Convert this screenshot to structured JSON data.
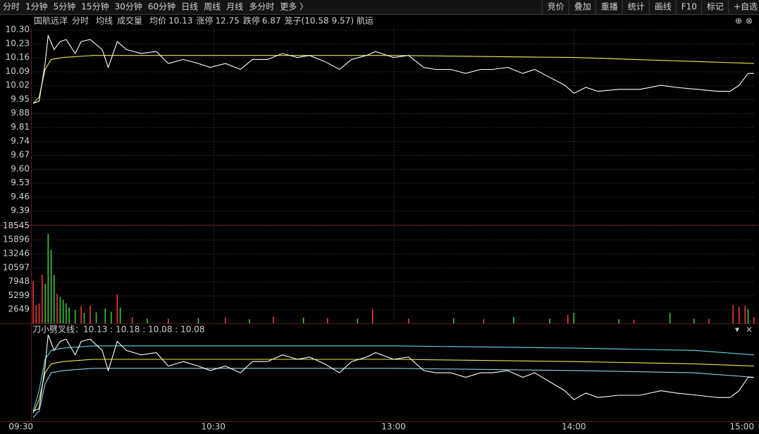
{
  "toolbar": {
    "left": [
      "分时",
      "1分钟",
      "5分钟",
      "15分钟",
      "30分钟",
      "60分钟",
      "日线",
      "周线",
      "月线",
      "多分时",
      "更多 〉"
    ],
    "active": 0,
    "right": [
      "竞价",
      "叠加",
      "重播",
      "统计",
      "画线",
      "F10",
      "标记",
      "+自选"
    ]
  },
  "header": {
    "name": "国航远洋",
    "items": [
      "分时",
      "均线",
      "成交量"
    ],
    "avg_label": "均价",
    "avg": 10.13,
    "limit_up_label": "涨停",
    "limit_up": 12.75,
    "limit_down_label": "跌停",
    "limit_down": 6.87,
    "cage_open": "笼子(",
    "cage_high": 10.58,
    "cage_low": 9.57,
    "cage_close": ")",
    "sector": "航运"
  },
  "xlim": [
    0,
    240
  ],
  "xticks": [
    {
      "value": 0,
      "label": "09:30"
    },
    {
      "value": 60,
      "label": "10:30"
    },
    {
      "value": 120,
      "label": "13:00"
    },
    {
      "value": 180,
      "label": "14:00"
    },
    {
      "value": 240,
      "label": "15:00"
    }
  ],
  "price_chart": {
    "ylim": [
      9.32,
      10.3
    ],
    "yticks": [
      {
        "value": 10.3,
        "label": "10.30"
      },
      10.23,
      10.16,
      10.09,
      10.02,
      9.95,
      9.88,
      9.81,
      9.74,
      9.67,
      {
        "value": 9.6,
        "label": "9.60"
      },
      9.53,
      9.46,
      9.39
    ],
    "price": {
      "color": "#ffffff",
      "x": [
        0,
        2,
        4,
        5,
        7,
        9,
        11,
        14,
        16,
        19,
        23,
        25,
        28,
        31,
        36,
        41,
        45,
        50,
        55,
        59,
        64,
        69,
        73,
        78,
        83,
        88,
        92,
        97,
        102,
        106,
        111,
        114,
        120,
        125,
        130,
        134,
        139,
        144,
        149,
        153,
        158,
        163,
        167,
        172,
        177,
        180,
        184,
        188,
        195,
        202,
        209,
        214,
        221,
        228,
        232,
        235,
        238,
        240
      ],
      "values": [
        9.93,
        9.94,
        10.13,
        10.27,
        10.2,
        10.24,
        10.25,
        10.18,
        10.24,
        10.25,
        10.2,
        10.11,
        10.24,
        10.2,
        10.18,
        10.19,
        10.13,
        10.15,
        10.13,
        10.11,
        10.13,
        10.1,
        10.15,
        10.15,
        10.18,
        10.16,
        10.17,
        10.14,
        10.1,
        10.15,
        10.17,
        10.19,
        10.16,
        10.17,
        10.11,
        10.1,
        10.1,
        10.08,
        10.1,
        10.1,
        10.11,
        10.08,
        10.1,
        10.06,
        10.02,
        9.98,
        10.01,
        9.99,
        10.0,
        10.0,
        10.02,
        10.01,
        10.0,
        9.99,
        9.99,
        10.02,
        10.08,
        10.08
      ]
    },
    "average": {
      "color": "#e8e85a",
      "x": [
        0,
        2,
        4,
        6,
        10,
        20,
        60,
        120,
        180,
        220,
        240
      ],
      "values": [
        9.93,
        9.96,
        10.1,
        10.15,
        10.16,
        10.17,
        10.17,
        10.17,
        10.16,
        10.14,
        10.13
      ]
    }
  },
  "volume_chart": {
    "ylim": [
      0,
      18860
    ],
    "tick_color": "#e0c848",
    "yticks": [
      18545,
      15896,
      13246,
      10597,
      7948,
      5299,
      2649
    ],
    "up": {
      "color": "#ff3b3b",
      "x": [
        0,
        1,
        2,
        3,
        8,
        16,
        19,
        28,
        33,
        45,
        64,
        80,
        98,
        113,
        125,
        150,
        178,
        200,
        225,
        233,
        235,
        237,
        240
      ],
      "values": [
        8000,
        3500,
        3800,
        9200,
        5600,
        3300,
        3400,
        5500,
        1200,
        900,
        1100,
        1300,
        1000,
        2700,
        900,
        800,
        1600,
        700,
        900,
        3500,
        3200,
        3400,
        1200
      ]
    },
    "down": {
      "color": "#3bd13b",
      "x": [
        4,
        5,
        6,
        7,
        9,
        10,
        11,
        12,
        14,
        17,
        21,
        24,
        26,
        29,
        38,
        55,
        72,
        90,
        108,
        140,
        160,
        172,
        180,
        195,
        212,
        220,
        238
      ],
      "values": [
        7500,
        17000,
        14000,
        9200,
        5000,
        4500,
        3800,
        3000,
        2600,
        2000,
        2100,
        2800,
        2200,
        3000,
        900,
        1000,
        800,
        1100,
        900,
        1000,
        1200,
        900,
        2000,
        800,
        2000,
        900,
        2700
      ]
    }
  },
  "indicator": {
    "name": "刀小劈叉线",
    "separator": " : ",
    "first_separator": "：",
    "ylim": [
      9.89,
      10.27
    ],
    "series": [
      {
        "color": "#e8e85a",
        "value": 10.13,
        "x": [
          0,
          2,
          4,
          6,
          10,
          20,
          60,
          120,
          180,
          220,
          240
        ],
        "values": [
          9.92,
          9.98,
          10.1,
          10.14,
          10.15,
          10.16,
          10.16,
          10.16,
          10.15,
          10.14,
          10.13
        ]
      },
      {
        "color": "#5fd6e8",
        "value": 10.18,
        "x": [
          0,
          2,
          4,
          6,
          10,
          20,
          60,
          120,
          180,
          220,
          240
        ],
        "values": [
          9.93,
          10.02,
          10.16,
          10.2,
          10.21,
          10.22,
          10.22,
          10.22,
          10.21,
          10.2,
          10.18
        ]
      },
      {
        "color": "#8fd0f0",
        "value": 10.08,
        "x": [
          0,
          2,
          4,
          6,
          10,
          20,
          60,
          120,
          180,
          220,
          240
        ],
        "values": [
          9.9,
          9.93,
          10.05,
          10.1,
          10.11,
          10.12,
          10.12,
          10.12,
          10.11,
          10.1,
          10.08
        ]
      },
      {
        "color": "#ffffff",
        "value": 10.08
      }
    ]
  }
}
